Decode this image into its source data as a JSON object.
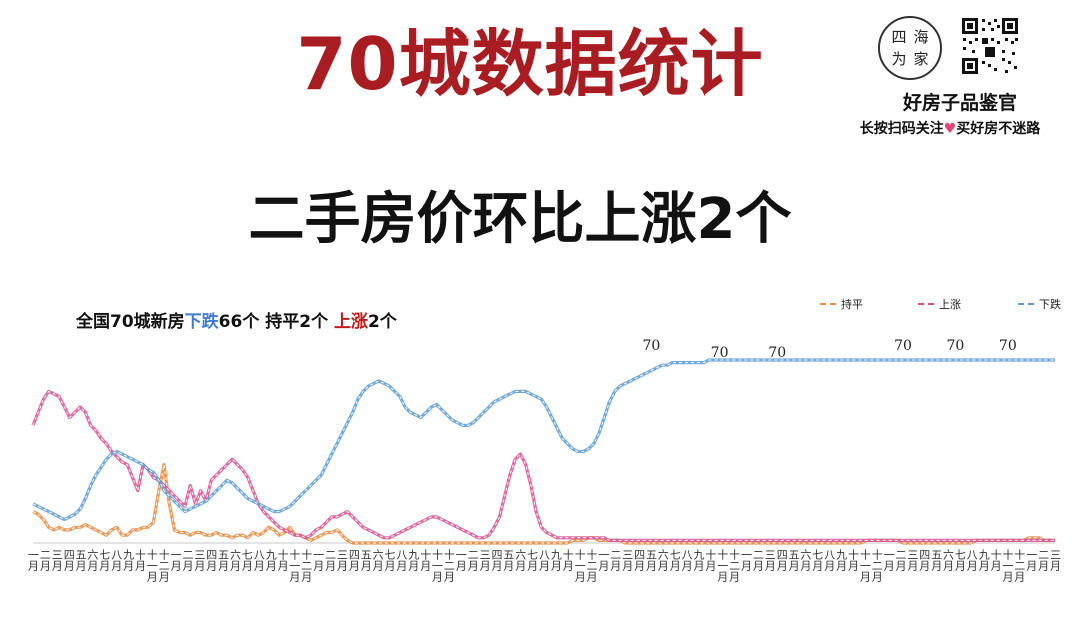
{
  "header": {
    "title": "70城数据统计",
    "subtitle": "二手房价环比上涨2个"
  },
  "brand": {
    "logo_chars": [
      "四",
      "海",
      "为",
      "家"
    ],
    "name": "好房子品鉴官",
    "slogan_before": "长按扫码关注",
    "slogan_after": "买好房不迷路",
    "heart": "♥"
  },
  "summary": {
    "prefix": "全国70城新房",
    "down_label": "下跌",
    "down_value": "66个 持平2个 ",
    "up_label": "上涨",
    "up_value": "2个"
  },
  "colors": {
    "flat": "#e8883d",
    "up": "#d9508f",
    "down": "#5a9bd4",
    "title_red": "#a91d22"
  },
  "chart_data": {
    "type": "line",
    "title": "",
    "xlabel": "",
    "ylabel": "",
    "ylim": [
      0,
      70
    ],
    "grid": false,
    "legend_position": "top-right",
    "x_tick_labels": [
      "一月",
      "二月",
      "三月",
      "四月",
      "五月",
      "六月",
      "七月",
      "八月",
      "九月",
      "十月",
      "十一月",
      "十二月",
      "一月",
      "二月",
      "三月",
      "四月",
      "五月",
      "六月",
      "七月",
      "八月",
      "九月",
      "十月",
      "十一月",
      "十二月",
      "一月",
      "二月",
      "三月",
      "四月",
      "五月",
      "六月",
      "七月",
      "八月",
      "九月",
      "十月",
      "十一月",
      "十二月",
      "一月",
      "二月",
      "三月",
      "四月",
      "五月",
      "六月",
      "七月",
      "八月",
      "九月",
      "十月",
      "十一月",
      "十二月",
      "一月",
      "二月",
      "三月",
      "四月",
      "五月",
      "六月",
      "七月",
      "八月",
      "九月",
      "十月",
      "十一月",
      "十二月",
      "一月",
      "二月",
      "三月",
      "四月",
      "五月",
      "六月",
      "七月",
      "八月",
      "九月",
      "十月",
      "十一月",
      "十二月",
      "一月",
      "二月",
      "三月",
      "四月",
      "五月",
      "六月",
      "七月",
      "八月",
      "九月",
      "十月",
      "十一月",
      "十二月",
      "一月",
      "二月",
      "三月"
    ],
    "series": [
      {
        "name": "持平",
        "color": "#e8883d",
        "values": [
          12,
          11,
          9,
          6,
          5,
          6,
          5,
          5,
          6,
          6,
          7,
          6,
          5,
          4,
          3,
          5,
          6,
          3,
          3,
          5,
          5,
          6,
          6,
          8,
          20,
          30,
          15,
          5,
          4,
          4,
          3,
          4,
          4,
          3,
          3,
          4,
          3,
          3,
          2,
          3,
          3,
          2,
          4,
          3,
          4,
          6,
          5,
          3,
          4,
          6,
          3,
          3,
          2,
          1,
          2,
          3,
          4,
          4,
          5,
          3,
          1,
          0,
          0,
          0,
          0,
          0,
          0,
          0,
          0,
          0,
          0,
          0,
          0,
          0,
          0,
          0,
          0,
          0,
          0,
          0,
          0,
          0,
          0,
          0,
          0,
          0,
          0,
          0,
          0,
          0,
          0,
          0,
          0,
          0,
          0,
          0,
          0,
          0,
          0,
          0,
          0,
          0,
          0,
          1,
          1,
          1,
          2,
          2,
          1,
          1,
          1,
          1,
          1,
          0,
          0,
          0,
          0,
          0,
          0,
          0,
          0,
          0,
          0,
          0,
          0,
          0,
          0,
          0,
          0,
          0,
          0,
          0,
          0,
          0,
          0,
          0,
          0,
          0,
          0,
          0,
          0,
          0,
          0,
          0,
          0,
          0,
          0,
          0,
          0,
          0,
          0,
          0,
          0,
          0,
          0,
          0,
          0,
          0,
          0,
          1,
          1,
          1,
          1,
          1,
          1,
          1,
          0,
          0,
          0,
          0,
          0,
          0,
          0,
          0,
          0,
          0,
          0,
          0,
          0,
          0,
          1,
          1,
          1,
          1,
          1,
          1,
          1,
          1,
          1,
          1,
          2,
          2,
          2,
          1,
          1,
          1
        ]
      },
      {
        "name": "上涨",
        "color": "#d9508f",
        "values": [
          45,
          50,
          55,
          58,
          57,
          56,
          52,
          48,
          50,
          52,
          50,
          45,
          43,
          40,
          38,
          35,
          33,
          31,
          30,
          25,
          20,
          30,
          28,
          25,
          24,
          22,
          20,
          18,
          16,
          14,
          22,
          15,
          20,
          16,
          24,
          26,
          28,
          30,
          32,
          30,
          28,
          25,
          20,
          15,
          12,
          10,
          8,
          6,
          5,
          4,
          3,
          3,
          2,
          3,
          5,
          6,
          8,
          10,
          10,
          11,
          12,
          10,
          8,
          6,
          5,
          4,
          3,
          2,
          2,
          3,
          4,
          5,
          6,
          7,
          8,
          9,
          10,
          10,
          9,
          8,
          7,
          6,
          5,
          4,
          3,
          2,
          2,
          3,
          6,
          10,
          18,
          26,
          32,
          34,
          30,
          22,
          12,
          6,
          4,
          3,
          2,
          2,
          2,
          2,
          2,
          2,
          2,
          2,
          2,
          2,
          1,
          1,
          1,
          1,
          1,
          1,
          1,
          1,
          1,
          1,
          1,
          1,
          1,
          1,
          1,
          1,
          1,
          1,
          1,
          1,
          1,
          1,
          1,
          1,
          1,
          1,
          1,
          1,
          1,
          1,
          1,
          1,
          1,
          1,
          1,
          1,
          1,
          1,
          1,
          1,
          1,
          1,
          1,
          1,
          1,
          1,
          1,
          1,
          1,
          1,
          1,
          1,
          1,
          1,
          1,
          1,
          1,
          1,
          1,
          1,
          1,
          1,
          1,
          1,
          1,
          1,
          1,
          1,
          1,
          1,
          1,
          1,
          1,
          1,
          1,
          1,
          1,
          1,
          1,
          1,
          1,
          1,
          1,
          1,
          1,
          1
        ]
      },
      {
        "name": "下跌",
        "color": "#5a9bd4",
        "values": [
          15,
          14,
          13,
          12,
          11,
          10,
          9,
          10,
          11,
          13,
          17,
          22,
          26,
          29,
          32,
          34,
          35,
          34,
          33,
          32,
          31,
          30,
          28,
          27,
          24,
          20,
          18,
          16,
          14,
          12,
          13,
          14,
          15,
          16,
          18,
          20,
          22,
          24,
          23,
          21,
          19,
          17,
          16,
          15,
          14,
          13,
          12,
          12,
          13,
          14,
          16,
          18,
          20,
          22,
          24,
          26,
          30,
          34,
          38,
          42,
          46,
          50,
          55,
          58,
          60,
          61,
          62,
          61,
          60,
          58,
          56,
          52,
          50,
          49,
          48,
          50,
          52,
          53,
          51,
          49,
          47,
          46,
          45,
          45,
          46,
          48,
          50,
          52,
          54,
          55,
          56,
          57,
          58,
          58,
          58,
          57,
          56,
          55,
          52,
          48,
          44,
          40,
          38,
          36,
          35,
          35,
          36,
          38,
          42,
          48,
          54,
          58,
          60,
          61,
          62,
          63,
          64,
          65,
          66,
          67,
          68,
          68,
          69,
          69,
          69,
          69,
          69,
          69,
          69,
          70,
          70,
          70,
          70,
          70,
          70,
          70,
          70,
          70,
          70,
          70,
          70,
          70,
          70,
          70,
          70,
          70,
          70,
          70,
          70,
          70,
          70,
          70,
          70,
          70,
          70,
          70,
          70,
          70,
          70,
          70,
          70,
          70,
          70,
          70,
          70,
          70,
          70,
          70,
          70,
          70,
          70,
          70,
          70,
          70,
          70,
          70,
          70,
          70,
          70,
          70,
          70,
          70,
          70,
          70,
          70,
          70,
          70,
          70,
          70,
          70,
          70,
          70,
          70,
          70,
          70,
          70
        ]
      }
    ],
    "annotations": [
      "70",
      "70",
      "70",
      "70",
      "70",
      "70"
    ]
  }
}
